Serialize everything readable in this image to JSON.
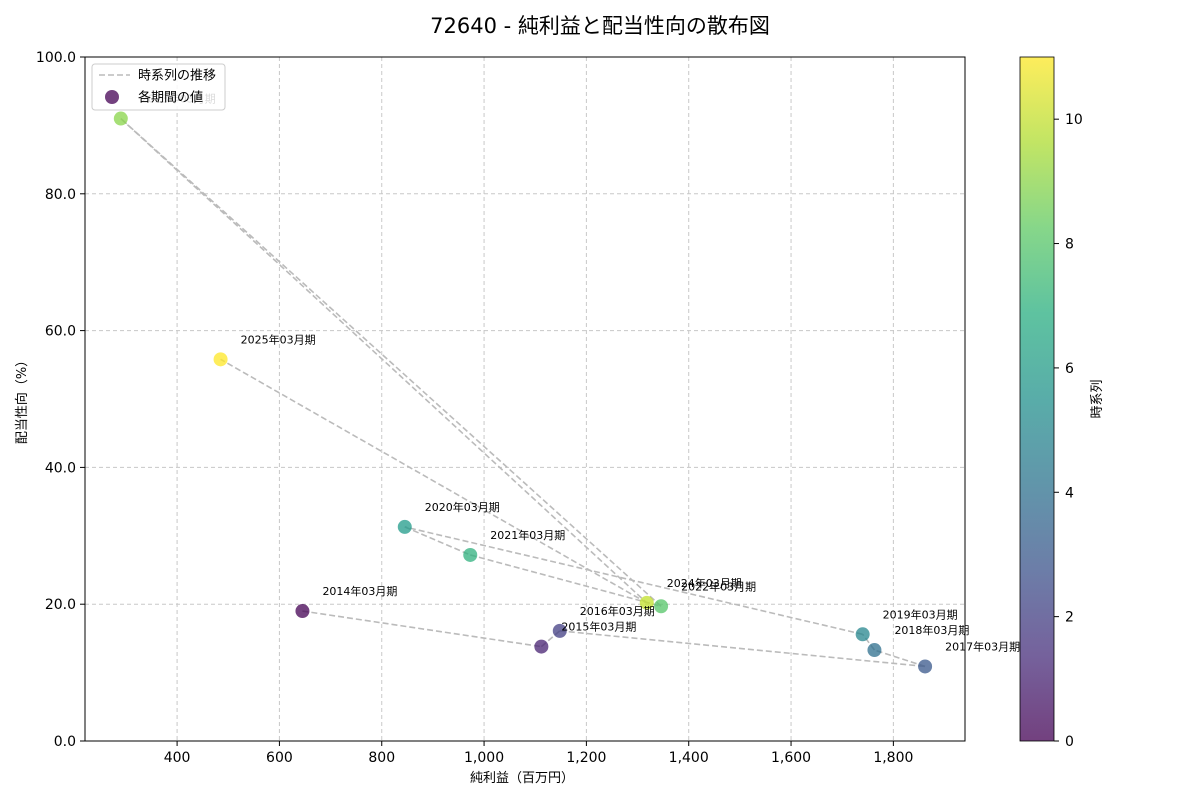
{
  "chart_data": {
    "type": "scatter",
    "title": "72640 - 純利益と配当性向の散布図",
    "xlabel": "純利益（百万円）",
    "ylabel": "配当性向（%）",
    "xlim": [
      220,
      1940
    ],
    "ylim": [
      0,
      100
    ],
    "x_ticks": [
      400,
      600,
      800,
      1000,
      1200,
      1400,
      1600,
      1800
    ],
    "x_tick_labels": [
      "400",
      "600",
      "800",
      "1,000",
      "1,200",
      "1,400",
      "1,600",
      "1,800"
    ],
    "y_ticks": [
      0,
      20,
      40,
      60,
      80,
      100
    ],
    "y_tick_labels": [
      "0.0",
      "20.0",
      "40.0",
      "60.0",
      "80.0",
      "100.0"
    ],
    "grid": true,
    "legend_position": "top-left",
    "legend": [
      {
        "label": "時系列の推移",
        "kind": "dashed-line",
        "color": "#bbbbbb"
      },
      {
        "label": "各期間の値",
        "kind": "marker",
        "color": "#440154"
      }
    ],
    "colormap": "viridis",
    "colorbar": {
      "label": "時系列",
      "range": [
        0,
        11
      ],
      "ticks": [
        0,
        2,
        4,
        6,
        8,
        10
      ],
      "tick_labels": [
        "0",
        "2",
        "4",
        "6",
        "8",
        "10"
      ]
    },
    "trajectory_color": "#bbbbbb",
    "points": [
      {
        "label": "2014年03月期",
        "x": 645,
        "y": 19.0,
        "t": 0
      },
      {
        "label": "2015年03月期",
        "x": 1112,
        "y": 13.8,
        "t": 1
      },
      {
        "label": "2016年03月期",
        "x": 1148,
        "y": 16.1,
        "t": 2
      },
      {
        "label": "2017年03月期",
        "x": 1862,
        "y": 10.9,
        "t": 3
      },
      {
        "label": "2018年03月期",
        "x": 1763,
        "y": 13.3,
        "t": 4
      },
      {
        "label": "2019年03月期",
        "x": 1740,
        "y": 15.6,
        "t": 5
      },
      {
        "label": "2020年03月期",
        "x": 845,
        "y": 31.3,
        "t": 6
      },
      {
        "label": "2021年03月期",
        "x": 973,
        "y": 27.2,
        "t": 7
      },
      {
        "label": "2022年03月期",
        "x": 1346,
        "y": 19.7,
        "t": 8
      },
      {
        "label": "2023年03月期",
        "x": 290,
        "y": 91.0,
        "t": 9
      },
      {
        "label": "2024年03月期",
        "x": 1318,
        "y": 20.2,
        "t": 10
      },
      {
        "label": "2025年03月期",
        "x": 485,
        "y": 55.8,
        "t": 11
      }
    ]
  }
}
